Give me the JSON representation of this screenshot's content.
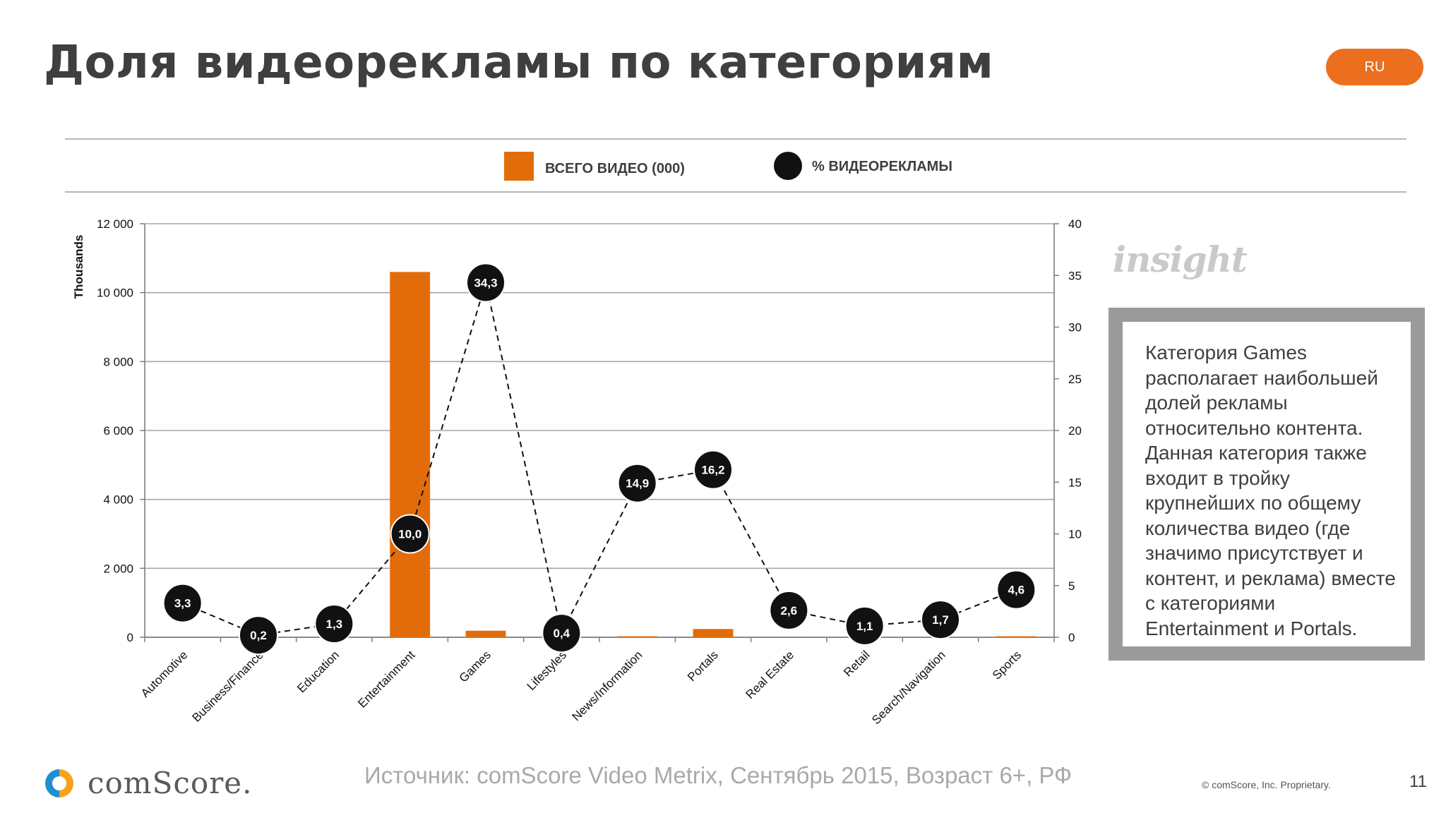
{
  "slide": {
    "title": "Доля видеорекламы по категориям",
    "lang_badge": "RU",
    "insight_label": "insight",
    "insight_text": "Категория Games располагает наибольшей долей рекламы относительно контента. Данная категория также входит в тройку крупнейших по общему количества видео (где значимо присутствует и контент, и реклама) вместе с категориями Entertainment и Portals.",
    "logo_text": "comScore.",
    "source": "Источник: comScore Video Metrix, Сентябрь 2015, Возраст 6+, РФ",
    "copyright": "© comScore, Inc. Proprietary.",
    "page_number": "11"
  },
  "colors": {
    "bar": "#e36c0a",
    "marker": "#111111",
    "accent": "#ec6f1f",
    "grid": "#a6a6a6"
  },
  "chart_data": {
    "type": "bar",
    "categories": [
      "Automotive",
      "Business/Finance",
      "Education",
      "Entertainment",
      "Games",
      "Lifestyles",
      "News/Information",
      "Portals",
      "Real Estate",
      "Retail",
      "Search/Navigation",
      "Sports"
    ],
    "ylabel": "Thousands",
    "ylim": [
      0,
      12000
    ],
    "y_ticks": [
      "0",
      "2 000",
      "4 000",
      "6 000",
      "8 000",
      "10 000",
      "12 000"
    ],
    "y2lim": [
      0,
      40
    ],
    "y2_ticks": [
      "0",
      "5",
      "10",
      "15",
      "20",
      "25",
      "30",
      "35",
      "40"
    ],
    "grid": true,
    "legend_position": "top",
    "series": [
      {
        "name": "ВСЕГО ВИДЕО (000)",
        "type": "bar",
        "axis": "left",
        "values": [
          0,
          0,
          0,
          10600,
          190,
          0,
          30,
          240,
          0,
          0,
          0,
          30
        ]
      },
      {
        "name": "% ВИДЕОРЕКЛАМЫ",
        "type": "line",
        "axis": "right",
        "style": "dashed",
        "values": [
          3.3,
          0.2,
          1.3,
          10.0,
          34.3,
          0.4,
          14.9,
          16.2,
          2.6,
          1.1,
          1.7,
          4.6
        ],
        "labels": [
          "3,3",
          "0,2",
          "1,3",
          "10,0",
          "34,3",
          "0,4",
          "14,9",
          "16,2",
          "2,6",
          "1,1",
          "1,7",
          "4,6"
        ]
      }
    ]
  }
}
